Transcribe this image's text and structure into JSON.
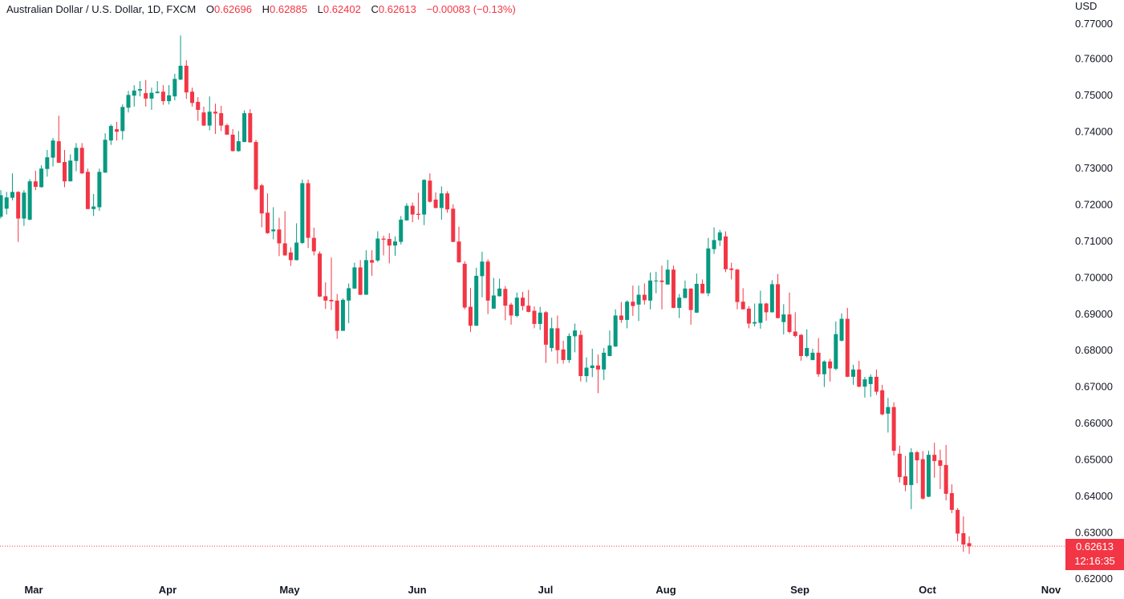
{
  "header": {
    "symbol": "Australian Dollar / U.S. Dollar, 1D, FXCM",
    "open_label": "O",
    "open": "0.62696",
    "high_label": "H",
    "high": "0.62885",
    "low_label": "L",
    "low": "0.62402",
    "close_label": "C",
    "close": "0.62613",
    "change": "−0.00083 (−0.13%)"
  },
  "price_axis": {
    "currency": "USD",
    "last_price": "0.62613",
    "countdown": "12:16:35"
  },
  "colors": {
    "up": "#089981",
    "down": "#f23645",
    "text": "#131722"
  },
  "chart_data": {
    "type": "candlestick",
    "title": "Australian Dollar / U.S. Dollar, 1D, FXCM",
    "ylim": [
      0.62,
      0.77
    ],
    "y_ticks": [
      "0.77000",
      "0.76000",
      "0.75000",
      "0.74000",
      "0.73000",
      "0.72000",
      "0.71000",
      "0.70000",
      "0.69000",
      "0.68000",
      "0.67000",
      "0.66000",
      "0.65000",
      "0.64000",
      "0.63000",
      "0.62000"
    ],
    "x_tick_labels": [
      "Mar",
      "Apr",
      "May",
      "Jun",
      "Jul",
      "Aug",
      "Sep",
      "Oct",
      "Nov"
    ],
    "grid": false,
    "last_price_line": 0.62613,
    "ohlc": [
      [
        0.7165,
        0.7238,
        0.716,
        0.7224
      ],
      [
        0.7187,
        0.7233,
        0.7171,
        0.7218
      ],
      [
        0.7217,
        0.7284,
        0.721,
        0.7233
      ],
      [
        0.7233,
        0.7235,
        0.7096,
        0.716
      ],
      [
        0.716,
        0.7238,
        0.714,
        0.7231
      ],
      [
        0.7157,
        0.7268,
        0.7155,
        0.7262
      ],
      [
        0.7262,
        0.7291,
        0.7238,
        0.7247
      ],
      [
        0.7246,
        0.7306,
        0.7245,
        0.7297
      ],
      [
        0.7296,
        0.7348,
        0.7275,
        0.7328
      ],
      [
        0.7327,
        0.7381,
        0.7303,
        0.7374
      ],
      [
        0.7372,
        0.7442,
        0.7313,
        0.7313
      ],
      [
        0.7315,
        0.7348,
        0.7246,
        0.7262
      ],
      [
        0.7262,
        0.7336,
        0.7262,
        0.7319
      ],
      [
        0.7318,
        0.7367,
        0.729,
        0.7354
      ],
      [
        0.7354,
        0.7367,
        0.7282,
        0.7284
      ],
      [
        0.7288,
        0.7297,
        0.7186,
        0.7186
      ],
      [
        0.7186,
        0.7227,
        0.7167,
        0.7193
      ],
      [
        0.7191,
        0.7297,
        0.7181,
        0.7288
      ],
      [
        0.7286,
        0.7394,
        0.7285,
        0.7376
      ],
      [
        0.7374,
        0.7418,
        0.7362,
        0.7414
      ],
      [
        0.7405,
        0.7425,
        0.7374,
        0.7398
      ],
      [
        0.74,
        0.7473,
        0.7376,
        0.7466
      ],
      [
        0.7464,
        0.751,
        0.7451,
        0.7499
      ],
      [
        0.7497,
        0.7526,
        0.7467,
        0.7511
      ],
      [
        0.7511,
        0.7537,
        0.7495,
        0.7515
      ],
      [
        0.7504,
        0.754,
        0.7467,
        0.7489
      ],
      [
        0.7489,
        0.7519,
        0.7458,
        0.7505
      ],
      [
        0.7504,
        0.7537,
        0.7503,
        0.7508
      ],
      [
        0.7508,
        0.7526,
        0.7472,
        0.7482
      ],
      [
        0.7482,
        0.7526,
        0.7473,
        0.7498
      ],
      [
        0.7495,
        0.7557,
        0.7484,
        0.7543
      ],
      [
        0.7541,
        0.7662,
        0.754,
        0.7579
      ],
      [
        0.7579,
        0.7594,
        0.7488,
        0.7506
      ],
      [
        0.7508,
        0.7519,
        0.7467,
        0.7477
      ],
      [
        0.748,
        0.7493,
        0.7428,
        0.7458
      ],
      [
        0.7451,
        0.7467,
        0.7414,
        0.7415
      ],
      [
        0.7415,
        0.7495,
        0.7402,
        0.7453
      ],
      [
        0.7453,
        0.7475,
        0.7392,
        0.7448
      ],
      [
        0.7449,
        0.7469,
        0.74,
        0.7415
      ],
      [
        0.7416,
        0.742,
        0.739,
        0.739
      ],
      [
        0.739,
        0.7405,
        0.7344,
        0.7345
      ],
      [
        0.7345,
        0.74,
        0.7343,
        0.7372
      ],
      [
        0.737,
        0.7457,
        0.7369,
        0.7449
      ],
      [
        0.7449,
        0.746,
        0.7368,
        0.7369
      ],
      [
        0.737,
        0.7376,
        0.7237,
        0.724
      ],
      [
        0.7251,
        0.7255,
        0.7136,
        0.7174
      ],
      [
        0.7176,
        0.7229,
        0.7118,
        0.712
      ],
      [
        0.7125,
        0.7191,
        0.7103,
        0.713
      ],
      [
        0.713,
        0.7162,
        0.7057,
        0.7092
      ],
      [
        0.7092,
        0.718,
        0.7058,
        0.7059
      ],
      [
        0.7067,
        0.7081,
        0.703,
        0.7046
      ],
      [
        0.7046,
        0.7147,
        0.7045,
        0.7094
      ],
      [
        0.7093,
        0.7267,
        0.709,
        0.7257
      ],
      [
        0.7257,
        0.7267,
        0.7079,
        0.7107
      ],
      [
        0.7107,
        0.7135,
        0.7059,
        0.707
      ],
      [
        0.7064,
        0.707,
        0.6945,
        0.6946
      ],
      [
        0.6947,
        0.6985,
        0.6912,
        0.6935
      ],
      [
        0.6937,
        0.7053,
        0.6909,
        0.6933
      ],
      [
        0.6935,
        0.6953,
        0.683,
        0.6852
      ],
      [
        0.6852,
        0.6941,
        0.6852,
        0.6937
      ],
      [
        0.6935,
        0.6982,
        0.6873,
        0.6969
      ],
      [
        0.6968,
        0.7039,
        0.6967,
        0.7026
      ],
      [
        0.7026,
        0.7046,
        0.695,
        0.6951
      ],
      [
        0.6951,
        0.7073,
        0.6951,
        0.7046
      ],
      [
        0.7046,
        0.7073,
        0.7003,
        0.7039
      ],
      [
        0.7045,
        0.7125,
        0.7041,
        0.7105
      ],
      [
        0.7105,
        0.7113,
        0.7059,
        0.7102
      ],
      [
        0.7104,
        0.712,
        0.7037,
        0.7086
      ],
      [
        0.7086,
        0.7111,
        0.7058,
        0.7097
      ],
      [
        0.7096,
        0.7167,
        0.7089,
        0.7157
      ],
      [
        0.7155,
        0.7202,
        0.7154,
        0.7195
      ],
      [
        0.7195,
        0.7204,
        0.715,
        0.7171
      ],
      [
        0.7173,
        0.7231,
        0.7157,
        0.717
      ],
      [
        0.7171,
        0.7268,
        0.7142,
        0.7266
      ],
      [
        0.7264,
        0.7284,
        0.7204,
        0.7206
      ],
      [
        0.7212,
        0.7232,
        0.7188,
        0.7189
      ],
      [
        0.7189,
        0.7248,
        0.7157,
        0.7229
      ],
      [
        0.7229,
        0.7235,
        0.7176,
        0.7185
      ],
      [
        0.7187,
        0.7199,
        0.7095,
        0.7096
      ],
      [
        0.7097,
        0.7138,
        0.7039,
        0.704
      ],
      [
        0.7036,
        0.7043,
        0.6911,
        0.6916
      ],
      [
        0.6918,
        0.697,
        0.6849,
        0.6866
      ],
      [
        0.6866,
        0.7025,
        0.6866,
        0.7003
      ],
      [
        0.7002,
        0.7069,
        0.6944,
        0.7042
      ],
      [
        0.7042,
        0.7048,
        0.6898,
        0.6935
      ],
      [
        0.6913,
        0.6997,
        0.6912,
        0.6949
      ],
      [
        0.6947,
        0.6995,
        0.6946,
        0.6968
      ],
      [
        0.6967,
        0.6975,
        0.6881,
        0.6921
      ],
      [
        0.6924,
        0.6929,
        0.6869,
        0.6894
      ],
      [
        0.6893,
        0.6957,
        0.6889,
        0.6943
      ],
      [
        0.6943,
        0.6959,
        0.6908,
        0.692
      ],
      [
        0.6921,
        0.6964,
        0.6903,
        0.6904
      ],
      [
        0.6907,
        0.6919,
        0.6859,
        0.6871
      ],
      [
        0.6871,
        0.6918,
        0.6854,
        0.6902
      ],
      [
        0.6903,
        0.6906,
        0.6764,
        0.6814
      ],
      [
        0.6805,
        0.6888,
        0.6795,
        0.6859
      ],
      [
        0.6859,
        0.6894,
        0.6762,
        0.6799
      ],
      [
        0.6801,
        0.6825,
        0.6762,
        0.6772
      ],
      [
        0.6772,
        0.6845,
        0.6764,
        0.6838
      ],
      [
        0.6837,
        0.6872,
        0.6793,
        0.6853
      ],
      [
        0.6841,
        0.6853,
        0.6713,
        0.6728
      ],
      [
        0.6728,
        0.6779,
        0.6711,
        0.6751
      ],
      [
        0.675,
        0.6803,
        0.6725,
        0.6757
      ],
      [
        0.6757,
        0.6787,
        0.6681,
        0.6746
      ],
      [
        0.6746,
        0.6805,
        0.6717,
        0.6792
      ],
      [
        0.6783,
        0.6853,
        0.6782,
        0.6812
      ],
      [
        0.6809,
        0.6911,
        0.6808,
        0.6894
      ],
      [
        0.6894,
        0.6931,
        0.6874,
        0.6882
      ],
      [
        0.6882,
        0.6936,
        0.6859,
        0.6932
      ],
      [
        0.6932,
        0.6976,
        0.6893,
        0.692
      ],
      [
        0.6924,
        0.6976,
        0.6879,
        0.6951
      ],
      [
        0.6951,
        0.6982,
        0.6924,
        0.6936
      ],
      [
        0.6935,
        0.7012,
        0.6911,
        0.699
      ],
      [
        0.6988,
        0.7014,
        0.6955,
        0.699
      ],
      [
        0.699,
        0.7031,
        0.6911,
        0.6986
      ],
      [
        0.6979,
        0.7047,
        0.6979,
        0.702
      ],
      [
        0.702,
        0.7031,
        0.6914,
        0.6915
      ],
      [
        0.6915,
        0.6953,
        0.6887,
        0.6943
      ],
      [
        0.6942,
        0.699,
        0.6942,
        0.6968
      ],
      [
        0.6968,
        0.6969,
        0.6869,
        0.6909
      ],
      [
        0.6902,
        0.7009,
        0.6901,
        0.6981
      ],
      [
        0.6981,
        0.6993,
        0.6954,
        0.6955
      ],
      [
        0.6955,
        0.7107,
        0.6947,
        0.7078
      ],
      [
        0.7076,
        0.7136,
        0.7063,
        0.7101
      ],
      [
        0.71,
        0.7129,
        0.7085,
        0.7122
      ],
      [
        0.7111,
        0.7125,
        0.7013,
        0.7021
      ],
      [
        0.7023,
        0.7039,
        0.6993,
        0.7019
      ],
      [
        0.702,
        0.7022,
        0.6911,
        0.6931
      ],
      [
        0.6932,
        0.6969,
        0.6911,
        0.6911
      ],
      [
        0.6913,
        0.692,
        0.6859,
        0.6872
      ],
      [
        0.6872,
        0.6927,
        0.6864,
        0.6876
      ],
      [
        0.6874,
        0.6962,
        0.6858,
        0.6927
      ],
      [
        0.6927,
        0.6929,
        0.688,
        0.6903
      ],
      [
        0.6903,
        0.6991,
        0.6902,
        0.698
      ],
      [
        0.698,
        0.7008,
        0.6886,
        0.6887
      ],
      [
        0.6876,
        0.6925,
        0.6842,
        0.6897
      ],
      [
        0.6897,
        0.6957,
        0.6845,
        0.6849
      ],
      [
        0.685,
        0.6903,
        0.6834,
        0.6838
      ],
      [
        0.6841,
        0.6843,
        0.677,
        0.6783
      ],
      [
        0.6783,
        0.6856,
        0.6779,
        0.6805
      ],
      [
        0.6772,
        0.6803,
        0.6771,
        0.6792
      ],
      [
        0.6792,
        0.6832,
        0.6726,
        0.6733
      ],
      [
        0.6733,
        0.6771,
        0.6698,
        0.6768
      ],
      [
        0.6768,
        0.6775,
        0.6713,
        0.6749
      ],
      [
        0.6748,
        0.6878,
        0.6744,
        0.6843
      ],
      [
        0.6825,
        0.69,
        0.6823,
        0.6885
      ],
      [
        0.6885,
        0.6915,
        0.6725,
        0.6726
      ],
      [
        0.6726,
        0.6759,
        0.6704,
        0.6746
      ],
      [
        0.6746,
        0.677,
        0.6697,
        0.6699
      ],
      [
        0.6699,
        0.6726,
        0.6669,
        0.6719
      ],
      [
        0.6706,
        0.6733,
        0.6671,
        0.6726
      ],
      [
        0.6726,
        0.6746,
        0.6676,
        0.6685
      ],
      [
        0.6689,
        0.6704,
        0.662,
        0.6623
      ],
      [
        0.6625,
        0.6668,
        0.6573,
        0.6643
      ],
      [
        0.6643,
        0.6656,
        0.651,
        0.6523
      ],
      [
        0.6515,
        0.6537,
        0.6436,
        0.6451
      ],
      [
        0.6453,
        0.6509,
        0.6412,
        0.6429
      ],
      [
        0.6429,
        0.653,
        0.6363,
        0.6519
      ],
      [
        0.6519,
        0.6523,
        0.6434,
        0.6497
      ],
      [
        0.65,
        0.6522,
        0.6389,
        0.6392
      ],
      [
        0.6397,
        0.6523,
        0.6396,
        0.6512
      ],
      [
        0.6512,
        0.6545,
        0.6449,
        0.6495
      ],
      [
        0.6497,
        0.6526,
        0.6418,
        0.6482
      ],
      [
        0.6484,
        0.6539,
        0.6387,
        0.6405
      ],
      [
        0.6407,
        0.6431,
        0.6352,
        0.6361
      ],
      [
        0.6361,
        0.6366,
        0.6275,
        0.6296
      ],
      [
        0.6297,
        0.6343,
        0.6246,
        0.6266
      ],
      [
        0.62696,
        0.62885,
        0.62402,
        0.62613
      ]
    ]
  }
}
